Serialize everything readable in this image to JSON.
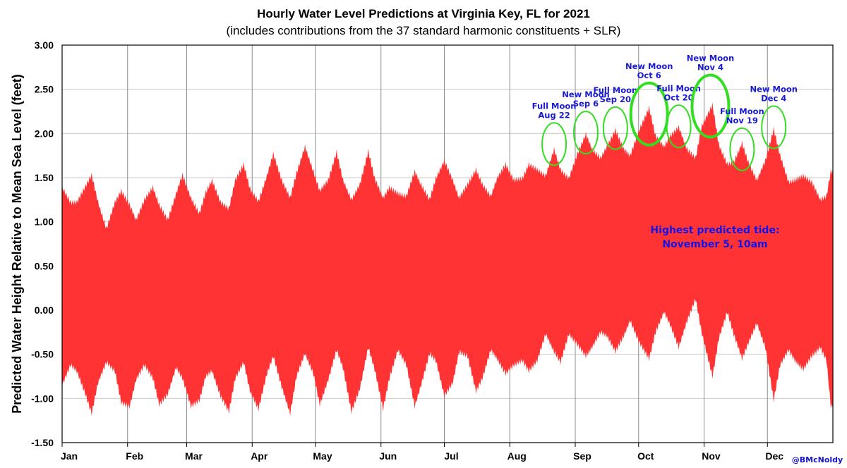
{
  "chart_data": {
    "type": "area",
    "title": "Hourly Water Level Predictions at Virginia Key, FL for 2021",
    "subtitle": "(includes contributions from the 37 standard harmonic constituents + SLR)",
    "ylabel": "Predicted  Water Height Relative to Mean Sea Level (feet)",
    "xlabel": "",
    "ylim": [
      -1.5,
      3.0
    ],
    "xlim_days": [
      0,
      365
    ],
    "yticks": [
      "3.00",
      "2.50",
      "2.00",
      "1.50",
      "1.00",
      "0.50",
      "0.00",
      "-0.50",
      "-1.00",
      "-1.50"
    ],
    "month_labels": [
      "Jan",
      "Feb",
      "Mar",
      "Apr",
      "May",
      "Jun",
      "Jul",
      "Aug",
      "Sep",
      "Oct",
      "Nov",
      "Dec"
    ],
    "month_starts": [
      "2021-01-01",
      "2021-02-01",
      "2021-03-01",
      "2021-04-01",
      "2021-05-01",
      "2021-06-01",
      "2021-07-01",
      "2021-08-01",
      "2021-09-01",
      "2021-10-01",
      "2021-11-01",
      "2021-12-01"
    ],
    "grid": true,
    "fill_color": "#ff3333",
    "series": [
      {
        "x": [
          "2021-01-01",
          "2021-01-05",
          "2021-01-08",
          "2021-01-12",
          "2021-01-15",
          "2021-01-18",
          "2021-01-22",
          "2021-01-26",
          "2021-01-29",
          "2021-02-02",
          "2021-02-05",
          "2021-02-09",
          "2021-02-13",
          "2021-02-16",
          "2021-02-20",
          "2021-02-24",
          "2021-02-27",
          "2021-03-03",
          "2021-03-07",
          "2021-03-10",
          "2021-03-13",
          "2021-03-17",
          "2021-03-21",
          "2021-03-24",
          "2021-03-28",
          "2021-03-31",
          "2021-04-04",
          "2021-04-08",
          "2021-04-11",
          "2021-04-15",
          "2021-04-19",
          "2021-04-22",
          "2021-04-26",
          "2021-04-30",
          "2021-05-03",
          "2021-05-07",
          "2021-05-11",
          "2021-05-14",
          "2021-05-18",
          "2021-05-22",
          "2021-05-26",
          "2021-05-29",
          "2021-06-02",
          "2021-06-05",
          "2021-06-09",
          "2021-06-13",
          "2021-06-17",
          "2021-06-20",
          "2021-06-24",
          "2021-06-27",
          "2021-07-01",
          "2021-07-05",
          "2021-07-08",
          "2021-07-12",
          "2021-07-16",
          "2021-07-19",
          "2021-07-23",
          "2021-07-26",
          "2021-07-30",
          "2021-08-03",
          "2021-08-07",
          "2021-08-10",
          "2021-08-14",
          "2021-08-18",
          "2021-08-22",
          "2021-08-25",
          "2021-08-29",
          "2021-09-02",
          "2021-09-06",
          "2021-09-09",
          "2021-09-13",
          "2021-09-16",
          "2021-09-20",
          "2021-09-24",
          "2021-09-27",
          "2021-10-01",
          "2021-10-06",
          "2021-10-09",
          "2021-10-13",
          "2021-10-16",
          "2021-10-20",
          "2021-10-24",
          "2021-10-28",
          "2021-10-31",
          "2021-11-05",
          "2021-11-08",
          "2021-11-12",
          "2021-11-15",
          "2021-11-19",
          "2021-11-22",
          "2021-11-26",
          "2021-11-30",
          "2021-12-04",
          "2021-12-07",
          "2021-12-11",
          "2021-12-14",
          "2021-12-18",
          "2021-12-22",
          "2021-12-26",
          "2021-12-29",
          "2021-12-31"
        ],
        "high": [
          1.42,
          1.25,
          1.25,
          1.43,
          1.56,
          1.25,
          0.95,
          1.25,
          1.38,
          1.22,
          1.05,
          1.28,
          1.42,
          1.22,
          1.05,
          1.35,
          1.56,
          1.3,
          1.12,
          1.36,
          1.5,
          1.25,
          1.18,
          1.5,
          1.68,
          1.4,
          1.26,
          1.55,
          1.8,
          1.5,
          1.3,
          1.58,
          1.88,
          1.6,
          1.38,
          1.5,
          1.82,
          1.5,
          1.28,
          1.45,
          1.83,
          1.52,
          1.3,
          1.42,
          1.35,
          1.32,
          1.6,
          1.45,
          1.28,
          1.52,
          1.72,
          1.5,
          1.3,
          1.45,
          1.62,
          1.45,
          1.32,
          1.52,
          1.68,
          1.5,
          1.52,
          1.68,
          1.62,
          1.55,
          1.85,
          1.62,
          1.52,
          1.8,
          2.02,
          1.85,
          1.75,
          1.88,
          2.07,
          1.85,
          1.78,
          2.05,
          2.32,
          2.0,
          1.88,
          2.0,
          2.1,
          1.85,
          1.75,
          2.12,
          2.35,
          1.9,
          1.68,
          1.7,
          1.92,
          1.7,
          1.5,
          1.72,
          2.08,
          1.78,
          1.48,
          1.5,
          1.55,
          1.48,
          1.28,
          1.32,
          1.6
        ],
        "low": [
          -0.88,
          -0.65,
          -0.72,
          -0.98,
          -1.2,
          -0.85,
          -0.62,
          -0.72,
          -1.08,
          -1.12,
          -0.82,
          -0.65,
          -0.8,
          -1.1,
          -0.98,
          -0.68,
          -0.8,
          -1.12,
          -1.05,
          -0.78,
          -0.72,
          -1.0,
          -1.18,
          -0.8,
          -0.62,
          -0.95,
          -1.15,
          -0.75,
          -0.55,
          -0.9,
          -1.2,
          -0.78,
          -0.52,
          -0.75,
          -1.1,
          -0.82,
          -0.48,
          -0.68,
          -1.18,
          -0.92,
          -0.45,
          -0.7,
          -1.15,
          -0.8,
          -0.48,
          -0.65,
          -1.12,
          -0.88,
          -0.52,
          -0.6,
          -1.0,
          -0.85,
          -0.5,
          -0.55,
          -0.95,
          -0.8,
          -0.48,
          -0.58,
          -0.75,
          -0.65,
          -0.6,
          -0.72,
          -0.6,
          -0.3,
          -0.5,
          -0.62,
          -0.3,
          -0.42,
          -0.55,
          -0.45,
          -0.28,
          -0.32,
          -0.5,
          -0.32,
          -0.15,
          -0.38,
          -0.58,
          -0.28,
          -0.05,
          -0.2,
          -0.45,
          -0.15,
          0.1,
          -0.3,
          -0.78,
          -0.35,
          -0.05,
          -0.3,
          -0.58,
          -0.4,
          -0.18,
          -0.45,
          -1.05,
          -0.65,
          -0.48,
          -0.6,
          -0.7,
          -0.55,
          -0.45,
          -0.6,
          -1.12
        ]
      }
    ],
    "annotations": [
      {
        "line1": "Full Moon",
        "line2": "Aug 22",
        "date": "2021-08-22",
        "level": 1.88,
        "bold_ring": false
      },
      {
        "line1": "New Moon",
        "line2": "Sep 6",
        "date": "2021-09-06",
        "level": 2.01,
        "bold_ring": false
      },
      {
        "line1": "Full Moon",
        "line2": "Sep 20",
        "date": "2021-09-20",
        "level": 2.06,
        "bold_ring": false
      },
      {
        "line1": "New Moon",
        "line2": "Oct 6",
        "date": "2021-10-06",
        "level": 2.22,
        "bold_ring": true
      },
      {
        "line1": "Full Moon",
        "line2": "Oct 20",
        "date": "2021-10-20",
        "level": 2.08,
        "bold_ring": false
      },
      {
        "line1": "New Moon",
        "line2": "Nov 4",
        "date": "2021-11-04",
        "level": 2.31,
        "bold_ring": true
      },
      {
        "line1": "Full Moon",
        "line2": "Nov 19",
        "date": "2021-11-19",
        "level": 1.82,
        "bold_ring": false
      },
      {
        "line1": "New Moon",
        "line2": "Dec 4",
        "date": "2021-12-04",
        "level": 2.07,
        "bold_ring": false
      }
    ],
    "note_line1": "Highest predicted tide:",
    "note_line2": "November 5, 10am",
    "credit": "@BMcNoldy",
    "ring_color": "#33dd22",
    "note_color": "#1414e6"
  }
}
